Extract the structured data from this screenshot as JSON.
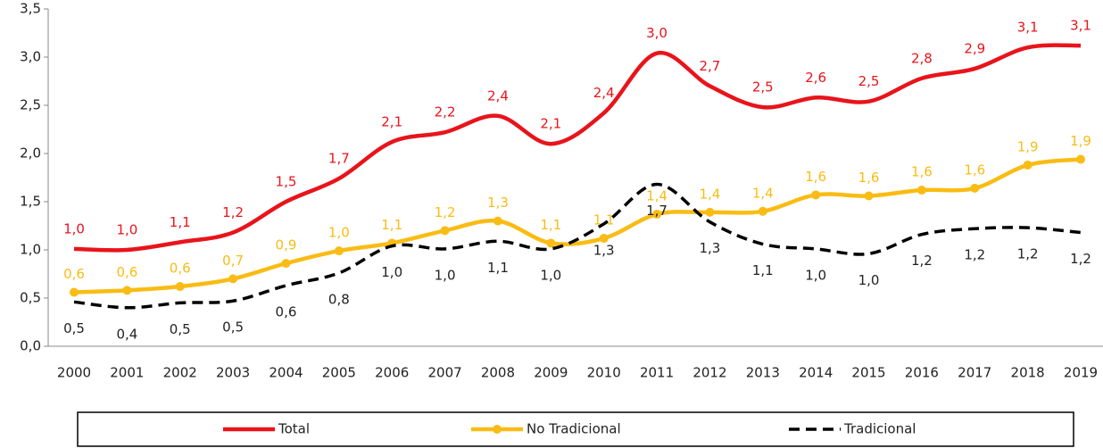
{
  "chart_data": {
    "type": "line",
    "categories": [
      "2000",
      "2001",
      "2002",
      "2003",
      "2004",
      "2005",
      "2006",
      "2007",
      "2008",
      "2009",
      "2010",
      "2011",
      "2012",
      "2013",
      "2014",
      "2015",
      "2016",
      "2017",
      "2018",
      "2019"
    ],
    "series": [
      {
        "name": "Total",
        "color": "#e8141b",
        "marker": false,
        "dash": false,
        "values": [
          1.01,
          1.0,
          1.08,
          1.18,
          1.5,
          1.74,
          2.12,
          2.22,
          2.39,
          2.1,
          2.42,
          3.04,
          2.7,
          2.48,
          2.58,
          2.54,
          2.78,
          2.88,
          3.1,
          3.12
        ],
        "value_labels": [
          "1,0",
          "1,0",
          "1,1",
          "1,2",
          "1,5",
          "1,7",
          "2,1",
          "2,2",
          "2,4",
          "2,1",
          "2,4",
          "3,0",
          "2,7",
          "2,5",
          "2,6",
          "2,5",
          "2,8",
          "2,9",
          "3,1",
          "3,1"
        ]
      },
      {
        "name": "No Tradicional",
        "color": "#f9bc14",
        "marker": true,
        "dash": false,
        "values": [
          0.56,
          0.58,
          0.62,
          0.7,
          0.86,
          0.99,
          1.07,
          1.2,
          1.3,
          1.07,
          1.12,
          1.37,
          1.39,
          1.4,
          1.57,
          1.56,
          1.62,
          1.64,
          1.88,
          1.94
        ],
        "value_labels": [
          "0,6",
          "0,6",
          "0,6",
          "0,7",
          "0,9",
          "1,0",
          "1,1",
          "1,2",
          "1,3",
          "1,1",
          "1,1",
          "1,4",
          "1,4",
          "1,4",
          "1,6",
          "1,6",
          "1,6",
          "1,6",
          "1,9",
          "1,9"
        ]
      },
      {
        "name": "Tradicional",
        "color": "#000000",
        "marker": false,
        "dash": true,
        "values": [
          0.46,
          0.4,
          0.45,
          0.47,
          0.63,
          0.76,
          1.04,
          1.01,
          1.09,
          1.01,
          1.27,
          1.68,
          1.29,
          1.06,
          1.01,
          0.96,
          1.16,
          1.22,
          1.23,
          1.18
        ],
        "value_labels": [
          "0,5",
          "0,4",
          "0,5",
          "0,5",
          "0,6",
          "0,8",
          "1,0",
          "1,0",
          "1,1",
          "1,0",
          "1,3",
          "1,7",
          "1,3",
          "1,1",
          "1,0",
          "1,0",
          "1,2",
          "1,2",
          "1,2",
          "1,2"
        ]
      }
    ],
    "ylim": [
      0,
      3.5
    ],
    "yticks": [
      {
        "value": 0,
        "label": "0,0"
      },
      {
        "value": 0.5,
        "label": "0,5"
      },
      {
        "value": 1,
        "label": "1,0"
      },
      {
        "value": 1.5,
        "label": "1,5"
      },
      {
        "value": 2,
        "label": "2,0"
      },
      {
        "value": 2.5,
        "label": "2,5"
      },
      {
        "value": 3,
        "label": "3,0"
      },
      {
        "value": 3.5,
        "label": "3,5"
      }
    ],
    "grid": false,
    "legend": "bottom"
  }
}
